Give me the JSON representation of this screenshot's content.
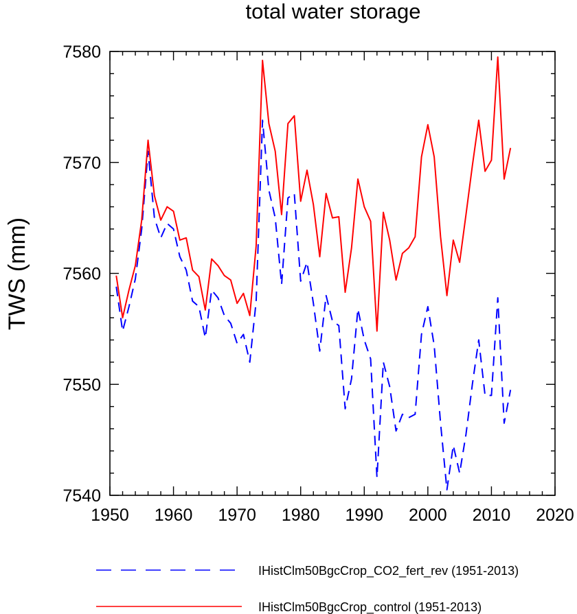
{
  "chart_data": {
    "type": "line",
    "title": "total water storage",
    "xlabel": "",
    "ylabel": "TWS  (mm)",
    "xlim": [
      1950,
      2020
    ],
    "ylim": [
      7540,
      7580
    ],
    "x_ticks": [
      1950,
      1960,
      1970,
      1980,
      1990,
      2000,
      2010,
      2020
    ],
    "y_ticks": [
      7540,
      7550,
      7560,
      7570,
      7580
    ],
    "grid": false,
    "legend_placement": "bottom",
    "x": [
      1951,
      1952,
      1953,
      1954,
      1955,
      1956,
      1957,
      1958,
      1959,
      1960,
      1961,
      1962,
      1963,
      1964,
      1965,
      1966,
      1967,
      1968,
      1969,
      1970,
      1971,
      1972,
      1973,
      1974,
      1975,
      1976,
      1977,
      1978,
      1979,
      1980,
      1981,
      1982,
      1983,
      1984,
      1985,
      1986,
      1987,
      1988,
      1989,
      1990,
      1991,
      1992,
      1993,
      1994,
      1995,
      1996,
      1997,
      1998,
      1999,
      2000,
      2001,
      2002,
      2003,
      2004,
      2005,
      2006,
      2007,
      2008,
      2009,
      2010,
      2011,
      2012,
      2013
    ],
    "series": [
      {
        "name": "IHistClm50BgcCrop_CO2_fert_rev (1951-2013)",
        "color": "#0000ff",
        "dash": "dashed",
        "values": [
          7558.8,
          7554.8,
          7557.0,
          7559.5,
          7564.0,
          7571.0,
          7565.0,
          7563.2,
          7564.5,
          7564.0,
          7561.5,
          7560.3,
          7557.5,
          7557.0,
          7554.2,
          7558.5,
          7557.8,
          7556.2,
          7555.5,
          7553.7,
          7554.5,
          7552.0,
          7557.5,
          7573.8,
          7567.5,
          7565.0,
          7559.0,
          7566.8,
          7567.2,
          7559.3,
          7561.0,
          7557.3,
          7553.0,
          7558.0,
          7555.7,
          7555.3,
          7547.8,
          7550.5,
          7556.8,
          7554.0,
          7552.3,
          7541.6,
          7552.0,
          7549.8,
          7545.8,
          7547.3,
          7547.0,
          7547.3,
          7554.5,
          7557.0,
          7553.5,
          7546.5,
          7540.5,
          7544.5,
          7542.0,
          7545.5,
          7550.0,
          7554.0,
          7549.0,
          7549.0,
          7557.8,
          7546.5,
          7549.5
        ]
      },
      {
        "name": "IHistClm50BgcCrop_control (1951-2013)",
        "color": "#ff0000",
        "dash": "solid",
        "values": [
          7559.8,
          7556.0,
          7558.5,
          7560.7,
          7564.8,
          7572.0,
          7567.0,
          7564.8,
          7566.0,
          7565.6,
          7563.0,
          7563.2,
          7560.3,
          7559.7,
          7556.7,
          7561.3,
          7560.7,
          7559.8,
          7559.4,
          7557.3,
          7558.2,
          7556.2,
          7562.5,
          7579.2,
          7573.5,
          7571.0,
          7565.3,
          7573.5,
          7574.2,
          7566.5,
          7569.3,
          7566.2,
          7561.5,
          7567.2,
          7565.0,
          7565.1,
          7558.3,
          7562.3,
          7568.5,
          7566.0,
          7564.7,
          7554.8,
          7565.5,
          7563.0,
          7559.4,
          7561.8,
          7562.3,
          7563.3,
          7570.5,
          7573.4,
          7570.5,
          7563.3,
          7558.0,
          7563.0,
          7561.0,
          7565.3,
          7569.7,
          7573.8,
          7569.2,
          7570.2,
          7579.5,
          7568.5,
          7571.3
        ]
      }
    ]
  }
}
